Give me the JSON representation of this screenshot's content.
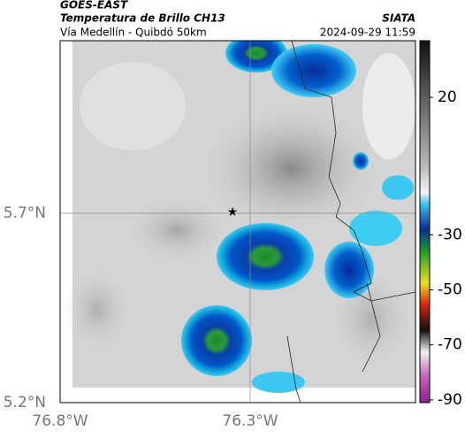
{
  "header": {
    "source": "GOES-EAST",
    "title": "Temperatura de Brillo CH13",
    "subtitle": "Vía Medellín - Quibdó 50km",
    "brand": "SIATA",
    "timestamp": "2024-09-29 11:59"
  },
  "map": {
    "lat_labels": [
      "5.7°N",
      "5.2°N"
    ],
    "lon_labels": [
      "76.8°W",
      "76.3°W"
    ]
  },
  "colorbar": {
    "ticks": [
      20,
      -30,
      -50,
      -70,
      -90
    ]
  }
}
